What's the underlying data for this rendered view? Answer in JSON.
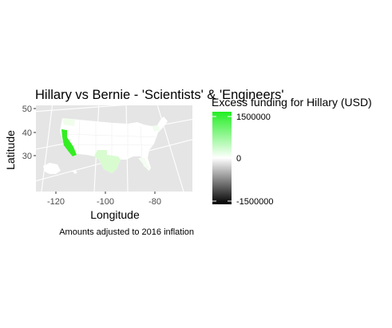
{
  "plot": {
    "title": "Hillary vs Bernie - 'Scientists' & 'Engineers'",
    "x_axis_title": "Longitude",
    "y_axis_title": "Latitude",
    "caption": "Amounts adjusted to 2016 inflation",
    "x_ticks": [
      "-120",
      "-100",
      "-80"
    ],
    "y_ticks": [
      "50",
      "40",
      "30"
    ],
    "panel_color": "#e5e5e5",
    "grid_color": "#ffffff"
  },
  "legend": {
    "title": "Excess funding for Hillary (USD)",
    "labels": [
      "1500000",
      "0",
      "-1500000"
    ],
    "high_color": "#22ee22",
    "mid_color": "#ffffff",
    "low_color": "#000000"
  },
  "map": {
    "highlighted_states": [
      {
        "name": "California",
        "color": "#33ee22"
      },
      {
        "name": "Texas",
        "color": "#d8fcd0"
      },
      {
        "name": "Washington",
        "color": "#f0fdeb"
      }
    ]
  }
}
